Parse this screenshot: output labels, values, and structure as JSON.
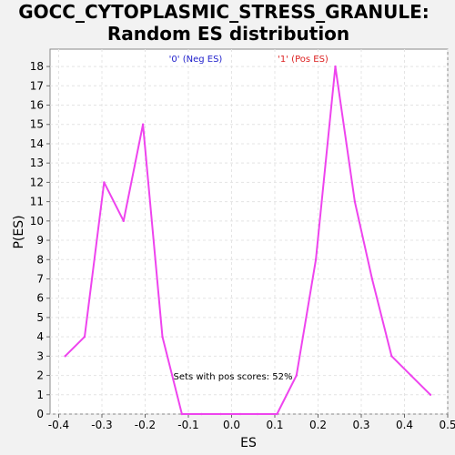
{
  "chart_data": {
    "type": "line",
    "title_line1": "GOCC_CYTOPLASMIC_STRESS_GRANULE:",
    "title_line2": "Random ES distribution",
    "xlabel": "ES",
    "ylabel": "P(ES)",
    "xlim": [
      -0.42,
      0.5
    ],
    "ylim": [
      0,
      18.9
    ],
    "x_ticks": [
      "-0.4",
      "-0.3",
      "-0.2",
      "-0.1",
      "0.0",
      "0.1",
      "0.2",
      "0.3",
      "0.4",
      "0.5"
    ],
    "x_tick_values": [
      -0.4,
      -0.3,
      -0.2,
      -0.1,
      0.0,
      0.1,
      0.2,
      0.3,
      0.4,
      0.5
    ],
    "y_ticks": [
      "0",
      "1",
      "2",
      "3",
      "4",
      "5",
      "6",
      "7",
      "8",
      "9",
      "10",
      "11",
      "12",
      "13",
      "14",
      "15",
      "16",
      "17",
      "18"
    ],
    "y_tick_values": [
      0,
      1,
      2,
      3,
      4,
      5,
      6,
      7,
      8,
      9,
      10,
      11,
      12,
      13,
      14,
      15,
      16,
      17,
      18
    ],
    "grid": true,
    "legend": [
      {
        "label": "'0' (Neg ES)",
        "color": "#2222cc"
      },
      {
        "label": "'1' (Pos ES)",
        "color": "#dd2222"
      }
    ],
    "annotation": "Sets with pos scores: 52%",
    "line_color": "#ee44ee",
    "series": [
      {
        "x": [
          -0.385,
          -0.34,
          -0.295,
          -0.25,
          -0.205,
          -0.16,
          -0.115,
          -0.07,
          -0.025,
          0.02,
          0.06,
          0.105,
          0.15,
          0.195,
          0.24,
          0.285,
          0.325,
          0.37,
          0.415,
          0.46
        ],
        "values": [
          3,
          4,
          12,
          10,
          15,
          4,
          0,
          0,
          0,
          0,
          0,
          0,
          2,
          8,
          18,
          11,
          7,
          3,
          2,
          1
        ]
      }
    ]
  }
}
